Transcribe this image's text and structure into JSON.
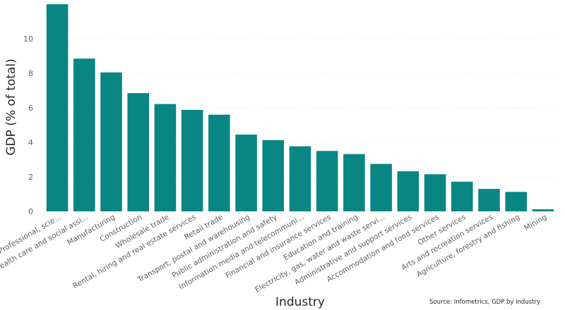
{
  "chart_data": {
    "type": "bar",
    "xlabel": "Industry",
    "ylabel": "GDP (% of total)",
    "ylim": [
      0,
      12
    ],
    "yticks": [
      0,
      2,
      4,
      6,
      8,
      10
    ],
    "grid": true,
    "bar_color": "#098683",
    "categories": [
      "Professional, scie...",
      "Health care and social assi...",
      "Manufacturing",
      "Construction",
      "Wholesale trade",
      "Rental, hiring and real estate services",
      "Retail trade",
      "Transport, postal and warehousing",
      "Public administration and safety",
      "Information media and telecommuni...",
      "Financial and insurance services",
      "Education and training",
      "Electricity, gas, water and waste servi...",
      "Administrative and support services",
      "Accommodation and food services",
      "Other services",
      "Arts and recreation services",
      "Agriculture, forestry and fishing",
      "Mining"
    ],
    "values": [
      12.0,
      8.85,
      8.05,
      6.85,
      6.22,
      5.88,
      5.6,
      4.45,
      4.13,
      3.77,
      3.5,
      3.32,
      2.75,
      2.32,
      2.15,
      1.72,
      1.3,
      1.13,
      0.12
    ],
    "source": "Source: Infometrics, GDP by industry"
  }
}
